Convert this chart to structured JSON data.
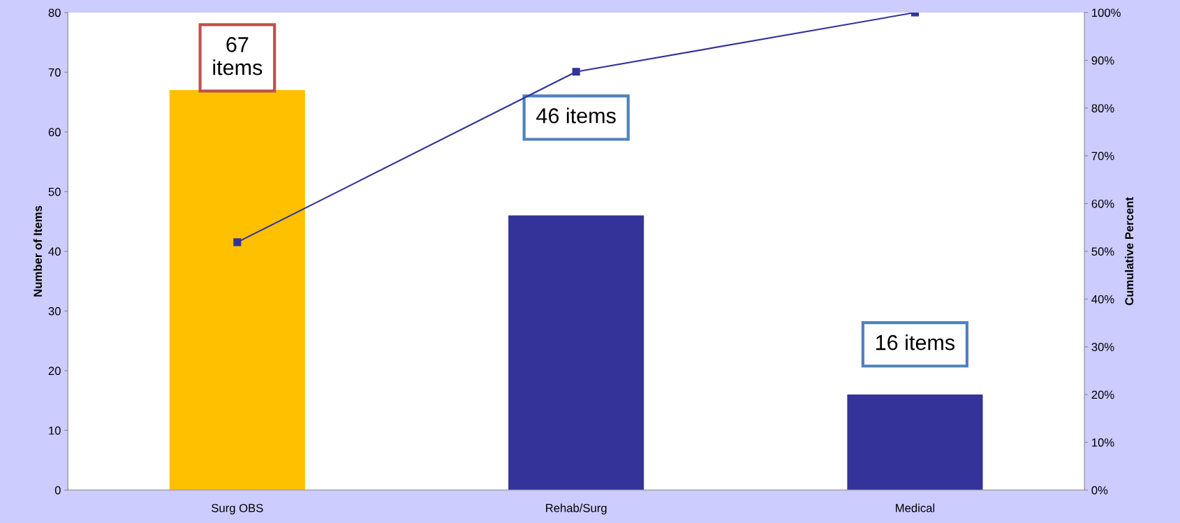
{
  "chart_data": {
    "type": "bar",
    "categories": [
      "Surg OBS",
      "Rehab/Surg",
      "Medical"
    ],
    "ylabel": "Number of Items",
    "y2label": "Cumulative Percent",
    "series": [
      {
        "colors": [
          "#ffc000",
          "#333399",
          "#333399"
        ],
        "values": [
          67,
          46,
          16
        ]
      },
      {
        "type": "line",
        "axis": "y2",
        "color": "#333399",
        "values": [
          51.9,
          87.6,
          100
        ],
        "marker": "square"
      }
    ],
    "ylim": [
      0,
      80
    ],
    "yticks": [
      0,
      10,
      20,
      30,
      40,
      50,
      60,
      70,
      80
    ],
    "y2lim": [
      0,
      100
    ],
    "y2ticks": [
      {
        "value": 0,
        "label": "0%"
      },
      {
        "value": 10,
        "label": "10%"
      },
      {
        "value": 20,
        "label": "20%"
      },
      {
        "value": 30,
        "label": "30%"
      },
      {
        "value": 40,
        "label": "40%"
      },
      {
        "value": 50,
        "label": "50%"
      },
      {
        "value": 60,
        "label": "60%"
      },
      {
        "value": 70,
        "label": "70%"
      },
      {
        "value": 80,
        "label": "80%"
      },
      {
        "value": 90,
        "label": "90%"
      },
      {
        "value": 100,
        "label": "100%"
      }
    ],
    "annotations": [
      "67\nitems",
      "46 items",
      "16 items"
    ],
    "grid": false,
    "legend": false
  }
}
